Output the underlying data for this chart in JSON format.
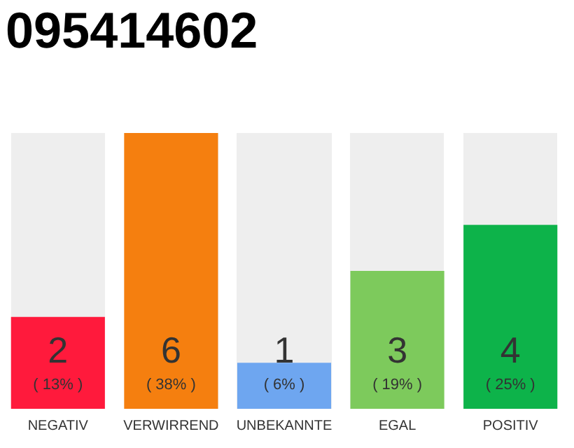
{
  "chart_data": {
    "type": "bar",
    "title": "095414602",
    "categories": [
      "NEGATIV",
      "VERWIRREND",
      "UNBEKANNTE",
      "EGAL",
      "POSITIV"
    ],
    "values": [
      2,
      6,
      1,
      3,
      4
    ],
    "colors": [
      "#ff1a3c",
      "#f57f0f",
      "#6ea6f0",
      "#7dca5c",
      "#0db34a"
    ],
    "ylim": [
      0,
      6
    ],
    "tick_labels": "x",
    "grid": false,
    "legend": false,
    "data_labels": true,
    "annotations": [
      "( 13% )",
      "( 38% )",
      "( 6% )",
      "( 19% )",
      "( 25% )"
    ]
  }
}
